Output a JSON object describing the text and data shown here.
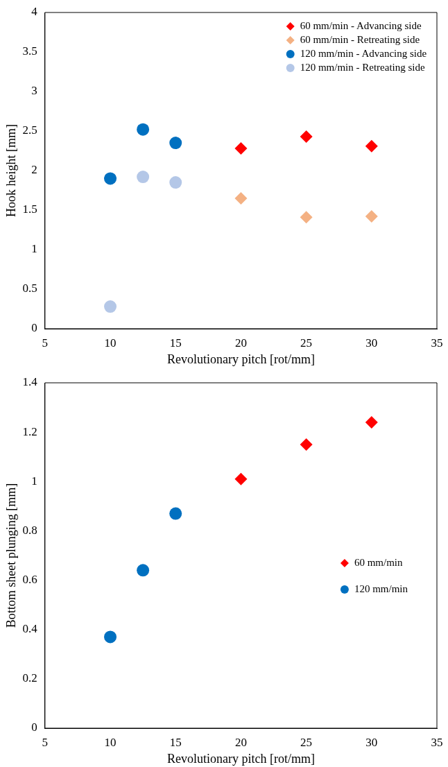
{
  "chart_data": [
    {
      "type": "scatter",
      "xlabel": "Revolutionary pitch [rot/mm]",
      "ylabel": "Hook height [mm]",
      "xlim": [
        5,
        35
      ],
      "xticks": [
        5,
        10,
        15,
        20,
        25,
        30,
        35
      ],
      "ylim": [
        0,
        4
      ],
      "yticks": [
        0,
        0.5,
        1,
        1.5,
        2,
        2.5,
        3,
        3.5,
        4
      ],
      "grid": false,
      "legend": "top right",
      "series": [
        {
          "name": "60 mm/min - Advancing side",
          "color": "#ff0000",
          "marker": "diamond",
          "x": [
            20,
            25,
            30
          ],
          "values": [
            2.28,
            2.43,
            2.31
          ]
        },
        {
          "name": "60 mm/min - Retreating side",
          "color": "#f4b183",
          "marker": "diamond",
          "x": [
            20,
            25,
            30
          ],
          "values": [
            1.65,
            1.41,
            1.42
          ]
        },
        {
          "name": "120 mm/min - Advancing side",
          "color": "#0070c0",
          "marker": "circle",
          "x": [
            10,
            12.5,
            15
          ],
          "values": [
            1.9,
            2.52,
            2.35
          ]
        },
        {
          "name": "120 mm/min - Retreating side",
          "color": "#b4c7e7",
          "marker": "circle",
          "x": [
            10,
            12.5,
            15
          ],
          "values": [
            0.28,
            1.92,
            1.85
          ]
        }
      ]
    },
    {
      "type": "scatter",
      "xlabel": "Revolutionary pitch [rot/mm]",
      "ylabel": "Bottom sheet plunging [mm]",
      "xlim": [
        5,
        35
      ],
      "xticks": [
        5,
        10,
        15,
        20,
        25,
        30,
        35
      ],
      "ylim": [
        0,
        1.4
      ],
      "yticks": [
        0,
        0.2,
        0.4,
        0.6,
        0.8,
        1,
        1.2,
        1.4
      ],
      "grid": false,
      "legend": "right",
      "series": [
        {
          "name": "60 mm/min",
          "color": "#ff0000",
          "marker": "diamond",
          "x": [
            20,
            25,
            30
          ],
          "values": [
            1.01,
            1.15,
            1.24
          ]
        },
        {
          "name": "120 mm/min",
          "color": "#0070c0",
          "marker": "circle",
          "x": [
            10,
            12.5,
            15
          ],
          "values": [
            0.37,
            0.64,
            0.87
          ]
        }
      ]
    }
  ]
}
